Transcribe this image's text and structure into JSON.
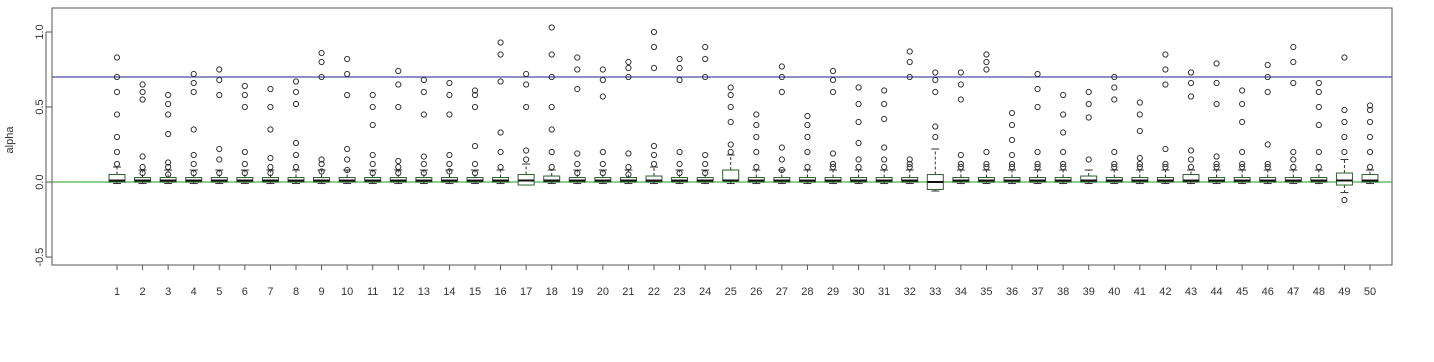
{
  "chart_data": {
    "type": "box",
    "ylabel": "alpha",
    "categories": [
      "1",
      "2",
      "3",
      "4",
      "5",
      "6",
      "7",
      "8",
      "9",
      "10",
      "11",
      "12",
      "13",
      "14",
      "15",
      "16",
      "17",
      "18",
      "19",
      "20",
      "21",
      "22",
      "23",
      "24",
      "25",
      "26",
      "27",
      "28",
      "29",
      "30",
      "31",
      "32",
      "33",
      "34",
      "35",
      "36",
      "37",
      "38",
      "39",
      "40",
      "41",
      "42",
      "43",
      "44",
      "45",
      "46",
      "47",
      "48",
      "49",
      "50"
    ],
    "low": [
      -0.01,
      -0.01,
      -0.01,
      -0.01,
      -0.01,
      -0.01,
      -0.01,
      -0.01,
      -0.01,
      -0.01,
      -0.01,
      -0.01,
      -0.01,
      -0.01,
      -0.01,
      -0.01,
      -0.01,
      -0.01,
      -0.01,
      -0.01,
      -0.01,
      -0.01,
      -0.01,
      -0.01,
      -0.01,
      -0.01,
      -0.01,
      -0.01,
      -0.01,
      -0.01,
      -0.01,
      -0.01,
      -0.06,
      -0.01,
      -0.01,
      -0.01,
      -0.01,
      -0.01,
      -0.01,
      -0.01,
      -0.01,
      -0.01,
      -0.01,
      -0.01,
      -0.01,
      -0.01,
      -0.01,
      -0.01,
      -0.07,
      -0.01
    ],
    "q1": [
      0,
      0,
      0,
      0,
      0,
      0,
      0,
      0,
      0,
      0,
      0,
      0,
      0,
      0,
      0,
      0,
      -0.02,
      0,
      0,
      0,
      0,
      0,
      0,
      0,
      0.01,
      0,
      0,
      0,
      0,
      0,
      0,
      0,
      -0.05,
      0,
      0,
      0,
      0,
      0,
      0,
      0,
      0,
      0,
      0,
      0,
      0,
      0,
      0,
      0,
      -0.02,
      0
    ],
    "median": [
      0.01,
      0.01,
      0.01,
      0.01,
      0.01,
      0.01,
      0.01,
      0.01,
      0.01,
      0.01,
      0.01,
      0.01,
      0.01,
      0.01,
      0.01,
      0.01,
      0.01,
      0.01,
      0.01,
      0.01,
      0.01,
      0.01,
      0.01,
      0.01,
      0.01,
      0.01,
      0.01,
      0.01,
      0.01,
      0.01,
      0.01,
      0.01,
      0,
      0.01,
      0.01,
      0.01,
      0.01,
      0.01,
      0.01,
      0.01,
      0.01,
      0.01,
      0.01,
      0.01,
      0.01,
      0.01,
      0.01,
      0.01,
      0.01,
      0.01
    ],
    "q3": [
      0.05,
      0.03,
      0.03,
      0.03,
      0.03,
      0.03,
      0.03,
      0.03,
      0.03,
      0.03,
      0.03,
      0.03,
      0.03,
      0.03,
      0.03,
      0.03,
      0.05,
      0.04,
      0.03,
      0.03,
      0.03,
      0.04,
      0.03,
      0.03,
      0.08,
      0.03,
      0.03,
      0.03,
      0.03,
      0.03,
      0.03,
      0.03,
      0.05,
      0.03,
      0.03,
      0.03,
      0.03,
      0.03,
      0.04,
      0.03,
      0.03,
      0.03,
      0.05,
      0.03,
      0.03,
      0.03,
      0.03,
      0.03,
      0.06,
      0.05
    ],
    "high": [
      0.1,
      0.08,
      0.08,
      0.08,
      0.08,
      0.08,
      0.08,
      0.08,
      0.08,
      0.08,
      0.08,
      0.08,
      0.08,
      0.08,
      0.08,
      0.08,
      0.12,
      0.08,
      0.08,
      0.08,
      0.08,
      0.1,
      0.08,
      0.08,
      0.18,
      0.08,
      0.08,
      0.08,
      0.08,
      0.08,
      0.08,
      0.08,
      0.22,
      0.08,
      0.08,
      0.08,
      0.08,
      0.08,
      0.08,
      0.08,
      0.08,
      0.08,
      0.08,
      0.08,
      0.08,
      0.08,
      0.08,
      0.08,
      0.15,
      0.08
    ],
    "outliers": [
      [
        0.12,
        0.2,
        0.3,
        0.45,
        0.6,
        0.7,
        0.83
      ],
      [
        0.06,
        0.1,
        0.17,
        0.55,
        0.6,
        0.65
      ],
      [
        0.05,
        0.1,
        0.13,
        0.32,
        0.45,
        0.52,
        0.58
      ],
      [
        0.06,
        0.12,
        0.18,
        0.35,
        0.6,
        0.66,
        0.72
      ],
      [
        0.06,
        0.15,
        0.22,
        0.58,
        0.68,
        0.75
      ],
      [
        0.06,
        0.12,
        0.2,
        0.5,
        0.58,
        0.64
      ],
      [
        0.06,
        0.1,
        0.16,
        0.35,
        0.5,
        0.62
      ],
      [
        0.1,
        0.18,
        0.26,
        0.52,
        0.6,
        0.67
      ],
      [
        0.07,
        0.12,
        0.15,
        0.7,
        0.8,
        0.86
      ],
      [
        0.08,
        0.15,
        0.22,
        0.58,
        0.72,
        0.82
      ],
      [
        0.06,
        0.12,
        0.18,
        0.38,
        0.5,
        0.58
      ],
      [
        0.06,
        0.1,
        0.14,
        0.5,
        0.65,
        0.74
      ],
      [
        0.06,
        0.12,
        0.17,
        0.45,
        0.6,
        0.68
      ],
      [
        0.07,
        0.12,
        0.18,
        0.45,
        0.58,
        0.66
      ],
      [
        0.06,
        0.12,
        0.24,
        0.5,
        0.58,
        0.61
      ],
      [
        0.1,
        0.2,
        0.33,
        0.67,
        0.85,
        0.93
      ],
      [
        0.15,
        0.21,
        0.5,
        0.65,
        0.72
      ],
      [
        0.1,
        0.2,
        0.35,
        0.5,
        0.7,
        0.85,
        1.03
      ],
      [
        0.06,
        0.12,
        0.19,
        0.62,
        0.75,
        0.83
      ],
      [
        0.06,
        0.12,
        0.2,
        0.57,
        0.68,
        0.75
      ],
      [
        0.05,
        0.1,
        0.19,
        0.7,
        0.76,
        0.8
      ],
      [
        0.12,
        0.18,
        0.24,
        0.76,
        0.9,
        1.0
      ],
      [
        0.06,
        0.12,
        0.2,
        0.68,
        0.76,
        0.82
      ],
      [
        0.06,
        0.12,
        0.18,
        0.7,
        0.82,
        0.9
      ],
      [
        0.2,
        0.25,
        0.4,
        0.5,
        0.58,
        0.63
      ],
      [
        0.1,
        0.2,
        0.3,
        0.38,
        0.45
      ],
      [
        0.08,
        0.15,
        0.23,
        0.6,
        0.7,
        0.77
      ],
      [
        0.1,
        0.2,
        0.3,
        0.38,
        0.44
      ],
      [
        0.1,
        0.12,
        0.19,
        0.6,
        0.68,
        0.74
      ],
      [
        0.1,
        0.15,
        0.26,
        0.4,
        0.52,
        0.63
      ],
      [
        0.1,
        0.15,
        0.23,
        0.42,
        0.52,
        0.61
      ],
      [
        0.1,
        0.12,
        0.15,
        0.7,
        0.8,
        0.87
      ],
      [
        0.3,
        0.37,
        0.6,
        0.68,
        0.73
      ],
      [
        0.1,
        0.12,
        0.18,
        0.55,
        0.65,
        0.73
      ],
      [
        0.1,
        0.12,
        0.2,
        0.75,
        0.8,
        0.85
      ],
      [
        0.1,
        0.12,
        0.18,
        0.28,
        0.38,
        0.46
      ],
      [
        0.1,
        0.12,
        0.2,
        0.5,
        0.62,
        0.72
      ],
      [
        0.1,
        0.12,
        0.2,
        0.33,
        0.45,
        0.58
      ],
      [
        0.15,
        0.43,
        0.52,
        0.6
      ],
      [
        0.1,
        0.12,
        0.2,
        0.55,
        0.63,
        0.7
      ],
      [
        0.1,
        0.12,
        0.16,
        0.34,
        0.45,
        0.53
      ],
      [
        0.1,
        0.12,
        0.22,
        0.65,
        0.75,
        0.85
      ],
      [
        0.1,
        0.15,
        0.21,
        0.57,
        0.66,
        0.73
      ],
      [
        0.1,
        0.12,
        0.17,
        0.52,
        0.66,
        0.79
      ],
      [
        0.1,
        0.12,
        0.2,
        0.4,
        0.52,
        0.61
      ],
      [
        0.1,
        0.12,
        0.25,
        0.6,
        0.7,
        0.78
      ],
      [
        0.1,
        0.15,
        0.2,
        0.66,
        0.8,
        0.9
      ],
      [
        0.1,
        0.2,
        0.38,
        0.5,
        0.6,
        0.66
      ],
      [
        -0.12,
        0.2,
        0.3,
        0.4,
        0.48,
        0.83
      ],
      [
        0.1,
        0.2,
        0.3,
        0.4,
        0.48,
        0.51
      ]
    ],
    "box_color": "#2e5e2e",
    "hlines": [
      {
        "value": 0.7,
        "color": "#4a4aa8"
      },
      {
        "value": 0,
        "color": "#4caf4c"
      }
    ],
    "ylim": [
      -0.553,
      1.16
    ],
    "yticks": [
      -0.5,
      {
        "value": 0,
        "label": "0.0"
      },
      0.5,
      {
        "value": 1,
        "label": "1.0"
      }
    ]
  }
}
